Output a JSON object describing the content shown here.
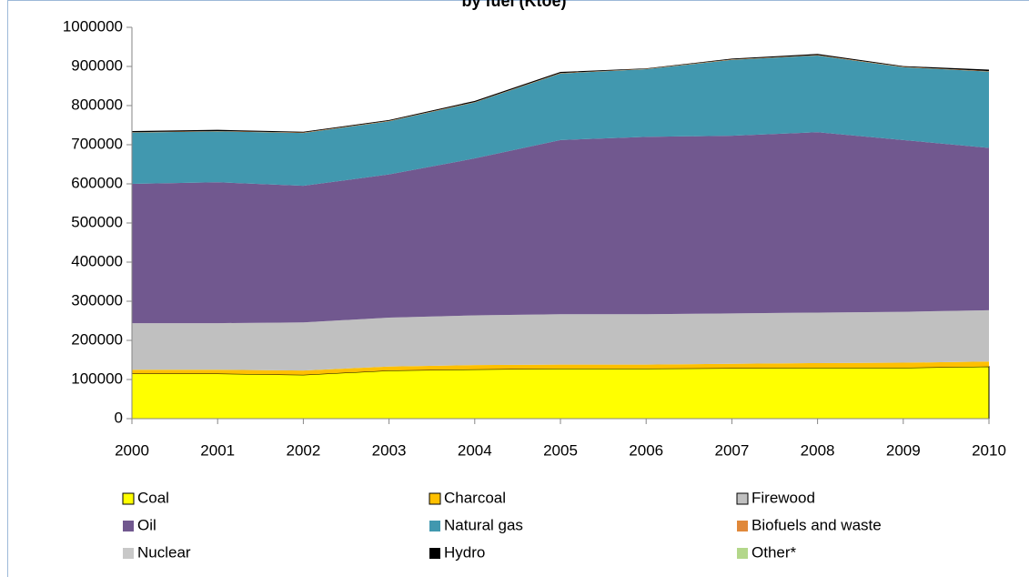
{
  "chart_data": {
    "type": "stacked_area",
    "title": "by fuel (Ktoe)",
    "x": [
      2000,
      2001,
      2002,
      2003,
      2004,
      2005,
      2006,
      2007,
      2008,
      2009,
      2010
    ],
    "xlim": [
      2000,
      2010
    ],
    "xticks": [
      2000,
      2001,
      2002,
      2003,
      2004,
      2005,
      2006,
      2007,
      2008,
      2009,
      2010
    ],
    "ylim": [
      0,
      1000000
    ],
    "yticks": [
      0,
      100000,
      200000,
      300000,
      400000,
      500000,
      600000,
      700000,
      800000,
      900000,
      1000000
    ],
    "series": [
      {
        "name": "Coal",
        "color": "#ffff00",
        "values": [
          115000,
          115000,
          112000,
          123000,
          126000,
          128000,
          128000,
          129000,
          130000,
          130000,
          133000
        ]
      },
      {
        "name": "Charcoal",
        "color": "#ffc000",
        "values": [
          10000,
          10000,
          11000,
          10000,
          11000,
          10000,
          10000,
          11000,
          12000,
          13000,
          13000
        ]
      },
      {
        "name": "Firewood",
        "color": "#c0c0c0",
        "values": [
          119000,
          119000,
          123000,
          125000,
          127000,
          129000,
          129000,
          129000,
          129000,
          130000,
          131000
        ]
      },
      {
        "name": "Oil",
        "color": "#71588f",
        "values": [
          356000,
          360000,
          349000,
          366000,
          401000,
          445000,
          453000,
          454000,
          461000,
          439000,
          415000
        ]
      },
      {
        "name": "Natural gas",
        "color": "#4198af",
        "values": [
          131000,
          130000,
          135000,
          136000,
          143000,
          170000,
          173000,
          194000,
          196000,
          186000,
          195000
        ]
      },
      {
        "name": "Biofuels and waste",
        "color": "#e0883a",
        "values": [
          1000,
          1000,
          1000,
          1000,
          1000,
          1000,
          1000,
          1000,
          1000,
          1000,
          1000
        ]
      },
      {
        "name": "Nuclear",
        "color": "#c8c8c8",
        "values": [
          0,
          0,
          0,
          0,
          0,
          0,
          0,
          0,
          0,
          0,
          0
        ]
      },
      {
        "name": "Hydro",
        "color": "#000000",
        "values": [
          3000,
          3000,
          2000,
          2000,
          3000,
          3000,
          1000,
          2000,
          3000,
          2000,
          4000
        ]
      },
      {
        "name": "Other*",
        "color": "#b3d78a",
        "values": [
          0,
          0,
          0,
          0,
          0,
          0,
          0,
          0,
          0,
          0,
          0
        ]
      }
    ]
  }
}
